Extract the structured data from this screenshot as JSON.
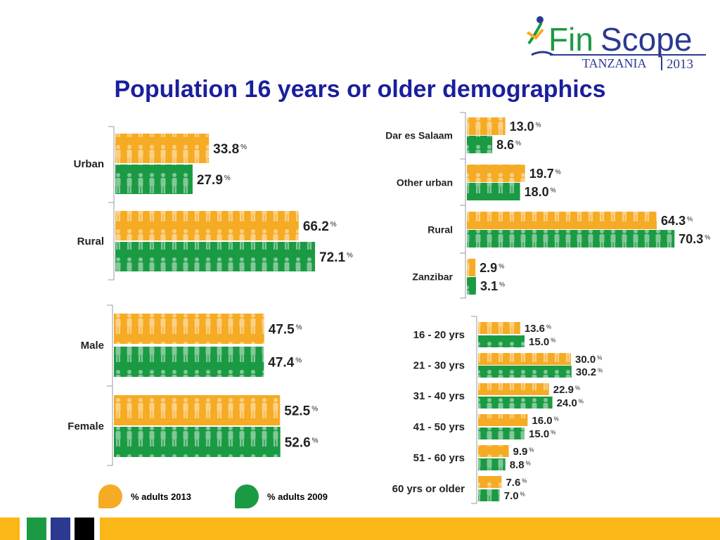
{
  "header": {
    "title": "Population 16 years or older demographics",
    "logo": {
      "brand_fin": "Fin",
      "brand_scope": "Scope",
      "country": "TANZANIA",
      "year": "2013"
    }
  },
  "colors": {
    "y2013": "#f6ab24",
    "y2009": "#1b9a44",
    "title": "#1a1f9c",
    "footer_yellow": "#fbb717",
    "footer_green": "#1b9a44",
    "footer_blue": "#2b3990",
    "footer_black": "#000000"
  },
  "legend": {
    "label_2013": "% adults 2013",
    "label_2009": "% adults 2009"
  },
  "chart_data": [
    {
      "type": "bar",
      "orientation": "horizontal",
      "categories": [
        "Urban",
        "Rural"
      ],
      "series": [
        {
          "name": "% adults 2013",
          "values": [
            33.8,
            66.2
          ]
        },
        {
          "name": "% adults 2009",
          "values": [
            27.9,
            72.1
          ]
        }
      ],
      "labels": {
        "2013": [
          "33.8",
          "66.2"
        ],
        "2009": [
          "27.9",
          "72.1"
        ]
      },
      "unit": "%"
    },
    {
      "type": "bar",
      "orientation": "horizontal",
      "categories": [
        "Male",
        "Female"
      ],
      "series": [
        {
          "name": "% adults 2013",
          "values": [
            47.5,
            52.5
          ]
        },
        {
          "name": "% adults 2009",
          "values": [
            47.4,
            52.6
          ]
        }
      ],
      "labels": {
        "2013": [
          "47.5",
          "52.5"
        ],
        "2009": [
          "47.4",
          "52.6"
        ]
      },
      "unit": "%"
    },
    {
      "type": "bar",
      "orientation": "horizontal",
      "categories": [
        "Dar es Salaam",
        "Other urban",
        "Rural",
        "Zanzibar"
      ],
      "series": [
        {
          "name": "% adults 2013",
          "values": [
            13.0,
            19.7,
            64.3,
            2.9
          ]
        },
        {
          "name": "% adults 2009",
          "values": [
            8.6,
            18.0,
            70.3,
            3.1
          ]
        }
      ],
      "labels": {
        "2013": [
          "13.0",
          "19.7",
          "64.3",
          "2.9"
        ],
        "2009": [
          "8.6",
          "18.0",
          "70.3",
          "3.1"
        ]
      },
      "unit": "%"
    },
    {
      "type": "bar",
      "orientation": "horizontal",
      "categories": [
        "16 - 20 yrs",
        "21 - 30 yrs",
        "31 - 40 yrs",
        "41 - 50 yrs",
        "51 - 60 yrs",
        "60 yrs or older"
      ],
      "series": [
        {
          "name": "% adults 2013",
          "values": [
            13.6,
            30.0,
            22.9,
            16.0,
            9.9,
            7.6
          ]
        },
        {
          "name": "% adults 2009",
          "values": [
            15.0,
            30.2,
            24.0,
            15.0,
            8.8,
            7.0
          ]
        }
      ],
      "labels": {
        "2013": [
          "13.6",
          "30.0",
          "22.9",
          "16.0",
          "9.9",
          "7.6"
        ],
        "2009": [
          "15.0",
          "30.2",
          "24.0",
          "15.0",
          "8.8",
          "7.0"
        ]
      },
      "unit": "%"
    }
  ]
}
